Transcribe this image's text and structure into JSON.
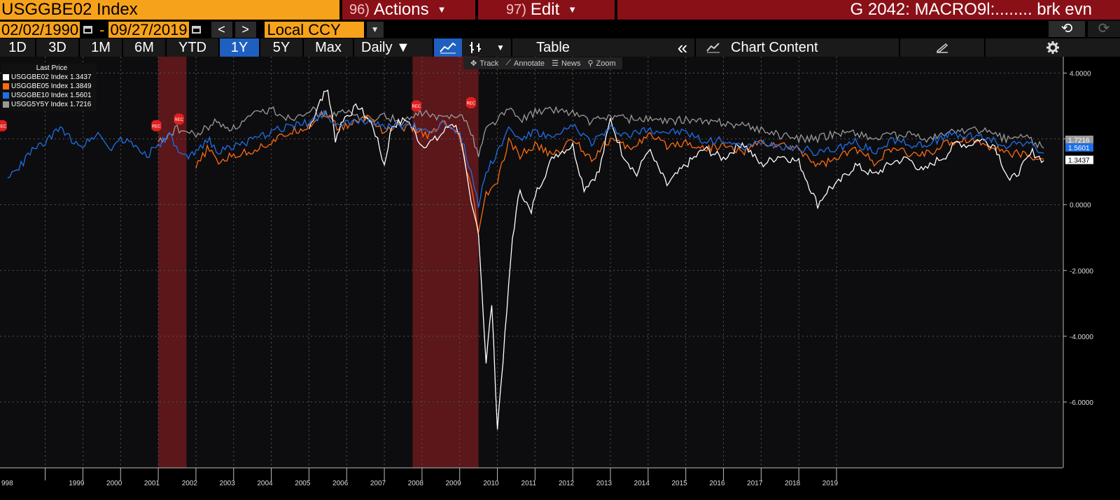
{
  "header": {
    "ticker": "USGGBE02 Index",
    "actions_num": "96)",
    "actions_label": "Actions",
    "edit_num": "97)",
    "edit_label": "Edit",
    "title": "G 2042: MACRO9l:........ brk evn"
  },
  "toolbar": {
    "start_date": "02/02/1990",
    "end_date": "09/27/2019",
    "dash": "-",
    "prev": "<",
    "next": ">",
    "currency": "Local CCY"
  },
  "ranges": [
    "1D",
    "3D",
    "1M",
    "6M",
    "YTD",
    "1Y",
    "5Y",
    "Max"
  ],
  "active_range": "1Y",
  "frequency": "Daily ▼",
  "table_label": "Table",
  "collapse_label": "«",
  "chart_content_label": "Chart Content",
  "chart_tools": {
    "track": "Track",
    "annotate": "Annotate",
    "news": "News",
    "zoom": "Zoom"
  },
  "legend": {
    "header": "Last Price",
    "items": [
      {
        "label": "USGGBE02 Index",
        "value": "1.3437",
        "color": "#ffffff"
      },
      {
        "label": "USGGBE05 Index",
        "value": "1.3849",
        "color": "#ff6a10"
      },
      {
        "label": "USGGBE10 Index",
        "value": "1.5601",
        "color": "#1f6fe8"
      },
      {
        "label": "USGG5Y5Y Index",
        "value": "1.7216",
        "color": "#9a9a9a"
      }
    ]
  },
  "chart_data": {
    "type": "line",
    "x_labels": [
      "998",
      "1999",
      "2000",
      "2001",
      "2002",
      "2003",
      "2004",
      "2005",
      "2006",
      "2007",
      "2008",
      "2009",
      "2010",
      "2011",
      "2012",
      "2013",
      "2014",
      "2015",
      "2016",
      "2017",
      "2018",
      "2019"
    ],
    "y_ticks": [
      "4.0000",
      "2.0000",
      "0.0000",
      "-2.0000",
      "-4.0000",
      "-6.0000"
    ],
    "ylim": [
      -8.0,
      4.5
    ],
    "recession_label": "REC",
    "recession_bands": [
      [
        2001.0,
        2001.75
      ],
      [
        2007.75,
        2009.5
      ]
    ],
    "last_value_labels": [
      "1.7216",
      "1.5601",
      "1.3437"
    ],
    "grid": true,
    "series": [
      {
        "name": "USGGBE02 Index",
        "color": "#ffffff",
        "points": [
          [
            2005.0,
            2.3
          ],
          [
            2005.3,
            3.2
          ],
          [
            2005.5,
            3.5
          ],
          [
            2005.7,
            2.0
          ],
          [
            2005.9,
            2.6
          ],
          [
            2006.3,
            3.0
          ],
          [
            2006.7,
            2.4
          ],
          [
            2007.0,
            1.2
          ],
          [
            2007.2,
            2.4
          ],
          [
            2007.6,
            2.6
          ],
          [
            2008.0,
            1.8
          ],
          [
            2008.4,
            2.0
          ],
          [
            2008.8,
            2.5
          ],
          [
            2009.0,
            2.2
          ],
          [
            2009.3,
            0.0
          ],
          [
            2009.5,
            -0.8
          ],
          [
            2009.7,
            -4.8
          ],
          [
            2009.85,
            -3.0
          ],
          [
            2010.0,
            -6.8
          ],
          [
            2010.2,
            -4.0
          ],
          [
            2010.4,
            -1.0
          ],
          [
            2010.6,
            0.5
          ],
          [
            2010.9,
            -0.3
          ],
          [
            2011.0,
            0.3
          ],
          [
            2011.5,
            1.5
          ],
          [
            2012.0,
            1.8
          ],
          [
            2012.3,
            0.5
          ],
          [
            2012.7,
            1.0
          ],
          [
            2013.0,
            2.6
          ],
          [
            2013.3,
            1.6
          ],
          [
            2013.7,
            0.9
          ],
          [
            2014.0,
            1.7
          ],
          [
            2014.5,
            0.6
          ],
          [
            2015.0,
            1.2
          ],
          [
            2015.5,
            1.7
          ],
          [
            2016.0,
            1.4
          ],
          [
            2016.5,
            1.9
          ],
          [
            2017.0,
            1.2
          ],
          [
            2017.5,
            1.5
          ],
          [
            2018.0,
            1.3
          ],
          [
            2018.5,
            0.0
          ],
          [
            2018.8,
            0.5
          ],
          [
            2019.0,
            0.6
          ],
          [
            2019.5,
            1.2
          ],
          [
            2020.0,
            0.9
          ],
          [
            2020.5,
            1.3
          ],
          [
            2020.9,
            1.4
          ],
          [
            2021.1,
            1.2
          ],
          [
            2021.3,
            1.0
          ],
          [
            2021.6,
            1.3
          ],
          [
            2021.9,
            1.5
          ],
          [
            2022.2,
            1.9
          ],
          [
            2022.5,
            1.8
          ],
          [
            2022.8,
            2.0
          ],
          [
            2023.2,
            1.8
          ],
          [
            2023.6,
            0.7
          ],
          [
            2023.9,
            1.1
          ],
          [
            2024.2,
            1.6
          ],
          [
            2024.5,
            1.34
          ]
        ]
      },
      {
        "name": "USGGBE05 Index",
        "color": "#ff6a10",
        "points": [
          [
            2002.0,
            1.1
          ],
          [
            2002.3,
            1.7
          ],
          [
            2002.6,
            1.3
          ],
          [
            2003.0,
            1.5
          ],
          [
            2003.4,
            1.6
          ],
          [
            2004.0,
            1.9
          ],
          [
            2004.5,
            2.2
          ],
          [
            2005.0,
            2.4
          ],
          [
            2005.4,
            2.8
          ],
          [
            2005.8,
            2.3
          ],
          [
            2006.2,
            2.5
          ],
          [
            2006.6,
            2.7
          ],
          [
            2007.0,
            2.2
          ],
          [
            2007.3,
            2.4
          ],
          [
            2007.8,
            2.3
          ],
          [
            2008.2,
            2.1
          ],
          [
            2008.6,
            2.5
          ],
          [
            2009.0,
            2.0
          ],
          [
            2009.3,
            0.5
          ],
          [
            2009.5,
            -0.8
          ],
          [
            2009.7,
            0.3
          ],
          [
            2010.0,
            0.7
          ],
          [
            2010.3,
            1.9
          ],
          [
            2010.6,
            1.5
          ],
          [
            2011.0,
            1.8
          ],
          [
            2011.5,
            1.5
          ],
          [
            2012.0,
            2.0
          ],
          [
            2012.5,
            1.4
          ],
          [
            2013.0,
            2.0
          ],
          [
            2013.5,
            1.7
          ],
          [
            2014.0,
            2.1
          ],
          [
            2014.5,
            1.8
          ],
          [
            2015.0,
            1.9
          ],
          [
            2015.5,
            1.7
          ],
          [
            2016.0,
            1.8
          ],
          [
            2016.5,
            1.6
          ],
          [
            2017.0,
            1.9
          ],
          [
            2017.5,
            1.8
          ],
          [
            2018.0,
            1.7
          ],
          [
            2018.5,
            1.2
          ],
          [
            2019.0,
            1.4
          ],
          [
            2019.5,
            1.7
          ],
          [
            2020.0,
            1.3
          ],
          [
            2020.5,
            1.7
          ],
          [
            2021.0,
            1.5
          ],
          [
            2021.5,
            1.6
          ],
          [
            2022.0,
            1.9
          ],
          [
            2022.5,
            2.0
          ],
          [
            2023.0,
            1.8
          ],
          [
            2023.5,
            1.6
          ],
          [
            2024.0,
            1.5
          ],
          [
            2024.5,
            1.38
          ]
        ]
      },
      {
        "name": "USGGBE10 Index",
        "color": "#1f6fe8",
        "points": [
          [
            1997.0,
            0.8
          ],
          [
            1997.3,
            1.1
          ],
          [
            1997.6,
            1.6
          ],
          [
            1998.0,
            1.9
          ],
          [
            1998.4,
            2.3
          ],
          [
            1998.7,
            2.0
          ],
          [
            1999.0,
            1.8
          ],
          [
            1999.4,
            2.2
          ],
          [
            1999.7,
            1.7
          ],
          [
            2000.0,
            2.0
          ],
          [
            2000.4,
            1.8
          ],
          [
            2000.7,
            1.5
          ],
          [
            2001.0,
            1.8
          ],
          [
            2001.3,
            2.1
          ],
          [
            2001.6,
            1.5
          ],
          [
            2001.8,
            1.4
          ],
          [
            2002.0,
            1.6
          ],
          [
            2002.3,
            2.0
          ],
          [
            2002.6,
            1.6
          ],
          [
            2003.0,
            1.8
          ],
          [
            2003.4,
            1.9
          ],
          [
            2004.0,
            2.2
          ],
          [
            2004.5,
            2.4
          ],
          [
            2005.0,
            2.5
          ],
          [
            2005.4,
            2.8
          ],
          [
            2005.8,
            2.4
          ],
          [
            2006.2,
            2.5
          ],
          [
            2006.6,
            2.6
          ],
          [
            2007.0,
            2.3
          ],
          [
            2007.3,
            2.4
          ],
          [
            2007.8,
            2.4
          ],
          [
            2008.2,
            2.2
          ],
          [
            2008.6,
            2.5
          ],
          [
            2009.0,
            2.2
          ],
          [
            2009.3,
            1.0
          ],
          [
            2009.5,
            0.0
          ],
          [
            2009.7,
            1.0
          ],
          [
            2010.0,
            1.6
          ],
          [
            2010.3,
            2.3
          ],
          [
            2010.6,
            2.0
          ],
          [
            2011.0,
            2.2
          ],
          [
            2011.5,
            2.0
          ],
          [
            2012.0,
            2.4
          ],
          [
            2012.5,
            1.9
          ],
          [
            2013.0,
            2.3
          ],
          [
            2013.5,
            2.1
          ],
          [
            2014.0,
            2.3
          ],
          [
            2014.5,
            2.2
          ],
          [
            2015.0,
            2.2
          ],
          [
            2015.5,
            1.9
          ],
          [
            2016.0,
            2.0
          ],
          [
            2016.5,
            1.7
          ],
          [
            2017.0,
            1.9
          ],
          [
            2017.5,
            1.8
          ],
          [
            2018.0,
            1.7
          ],
          [
            2018.5,
            1.6
          ],
          [
            2019.0,
            1.7
          ],
          [
            2019.5,
            1.9
          ],
          [
            2020.0,
            1.6
          ],
          [
            2020.5,
            2.0
          ],
          [
            2021.0,
            1.8
          ],
          [
            2021.5,
            1.9
          ],
          [
            2022.0,
            2.1
          ],
          [
            2022.5,
            2.1
          ],
          [
            2023.0,
            2.0
          ],
          [
            2023.5,
            1.8
          ],
          [
            2024.0,
            1.9
          ],
          [
            2024.5,
            1.56
          ]
        ]
      },
      {
        "name": "USGG5Y5Y Index",
        "color": "#9a9a9a",
        "points": [
          [
            2001.0,
            1.9
          ],
          [
            2001.5,
            2.3
          ],
          [
            2002.0,
            2.1
          ],
          [
            2002.5,
            2.5
          ],
          [
            2003.0,
            2.3
          ],
          [
            2003.5,
            2.7
          ],
          [
            2004.0,
            2.9
          ],
          [
            2004.5,
            2.6
          ],
          [
            2005.0,
            2.9
          ],
          [
            2005.5,
            2.7
          ],
          [
            2006.0,
            2.8
          ],
          [
            2006.5,
            2.6
          ],
          [
            2007.0,
            2.7
          ],
          [
            2007.5,
            2.5
          ],
          [
            2008.0,
            2.8
          ],
          [
            2008.5,
            2.6
          ],
          [
            2009.0,
            2.8
          ],
          [
            2009.3,
            2.2
          ],
          [
            2009.5,
            1.5
          ],
          [
            2009.7,
            2.3
          ],
          [
            2010.0,
            2.6
          ],
          [
            2010.3,
            2.9
          ],
          [
            2010.6,
            2.6
          ],
          [
            2011.0,
            2.8
          ],
          [
            2011.5,
            2.9
          ],
          [
            2012.0,
            2.8
          ],
          [
            2012.5,
            2.5
          ],
          [
            2013.0,
            2.7
          ],
          [
            2013.5,
            2.6
          ],
          [
            2014.0,
            2.6
          ],
          [
            2014.5,
            2.5
          ],
          [
            2015.0,
            2.6
          ],
          [
            2015.5,
            2.5
          ],
          [
            2016.0,
            2.5
          ],
          [
            2016.5,
            2.4
          ],
          [
            2017.0,
            2.3
          ],
          [
            2017.5,
            2.1
          ],
          [
            2018.0,
            2.0
          ],
          [
            2018.5,
            2.0
          ],
          [
            2019.0,
            2.2
          ],
          [
            2019.5,
            2.2
          ],
          [
            2020.0,
            2.0
          ],
          [
            2020.5,
            2.1
          ],
          [
            2021.0,
            2.1
          ],
          [
            2021.5,
            2.0
          ],
          [
            2022.0,
            2.2
          ],
          [
            2022.5,
            2.3
          ],
          [
            2023.0,
            2.2
          ],
          [
            2023.5,
            2.0
          ],
          [
            2024.0,
            2.1
          ],
          [
            2024.5,
            1.72
          ]
        ]
      }
    ]
  }
}
